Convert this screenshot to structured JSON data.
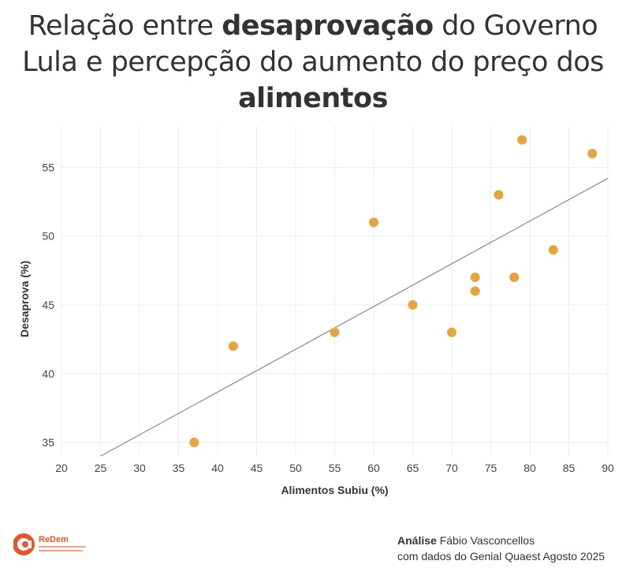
{
  "title": {
    "part1": "Relação entre ",
    "bold1": "desaprovação",
    "part2": " do Governo Lula e percepção do aumento do preço dos ",
    "bold2": "alimentos"
  },
  "chart_data": {
    "type": "scatter",
    "xlabel": "Alimentos Subiu (%)",
    "ylabel": "Desaprova (%)",
    "xlim": [
      20,
      90
    ],
    "ylim": [
      34,
      58
    ],
    "x_ticks": [
      20,
      25,
      30,
      35,
      40,
      45,
      50,
      55,
      60,
      65,
      70,
      75,
      80,
      85,
      90
    ],
    "y_ticks": [
      35,
      40,
      45,
      50,
      55
    ],
    "grid": true,
    "point_color": "#e8a33d",
    "trendline_color": "#888888",
    "points": [
      {
        "x": 37,
        "y": 35
      },
      {
        "x": 42,
        "y": 42
      },
      {
        "x": 55,
        "y": 43
      },
      {
        "x": 60,
        "y": 51
      },
      {
        "x": 65,
        "y": 45
      },
      {
        "x": 70,
        "y": 43
      },
      {
        "x": 73,
        "y": 47
      },
      {
        "x": 73,
        "y": 46
      },
      {
        "x": 76,
        "y": 53
      },
      {
        "x": 78,
        "y": 47
      },
      {
        "x": 79,
        "y": 57
      },
      {
        "x": 83,
        "y": 49
      },
      {
        "x": 88,
        "y": 56
      }
    ],
    "trendline": {
      "x1": 25,
      "y1": 34,
      "x2": 90,
      "y2": 54.2
    }
  },
  "logo": {
    "name": "ReDem"
  },
  "credit": {
    "label": "Análise",
    "author": " Fábio Vasconcellos",
    "source": "com dados do Genial Quaest Agosto 2025"
  }
}
